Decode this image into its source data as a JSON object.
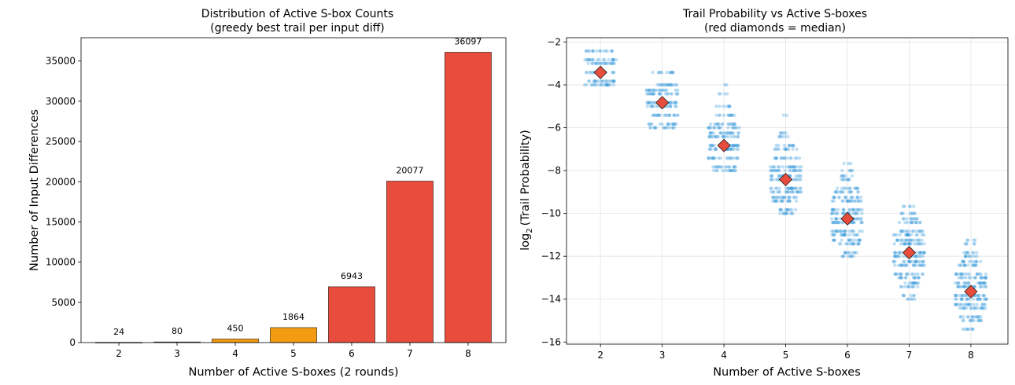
{
  "chart_data": [
    {
      "type": "bar",
      "title": "Distribution of Active S-box Counts",
      "subtitle": "(greedy best trail per input diff)",
      "xlabel": "Number of Active S-boxes (2 rounds)",
      "ylabel": "Number of Input Differences",
      "categories": [
        "2",
        "3",
        "4",
        "5",
        "6",
        "7",
        "8"
      ],
      "values": [
        24,
        80,
        450,
        1864,
        6943,
        20077,
        36097
      ],
      "data_labels": [
        "24",
        "80",
        "450",
        "1864",
        "6943",
        "20077",
        "36097"
      ],
      "colors": [
        "#f39c12",
        "#f39c12",
        "#f39c12",
        "#f39c12",
        "#e74c3c",
        "#e74c3c",
        "#e74c3c"
      ],
      "ylim": [
        0,
        37900
      ],
      "yticks": [
        0,
        5000,
        10000,
        15000,
        20000,
        25000,
        30000,
        35000
      ],
      "ytick_labels": [
        "0",
        "5000",
        "10000",
        "15000",
        "20000",
        "25000",
        "30000",
        "35000"
      ],
      "grid": false
    },
    {
      "type": "scatter",
      "title": "Trail Probability vs Active S-boxes",
      "subtitle": "(red diamonds = median)",
      "xlabel": "Number of Active S-boxes",
      "ylabel_pre": "log",
      "ylabel_sub": "2",
      "ylabel_post": "(Trail Probability)",
      "categories": [
        2,
        3,
        4,
        5,
        6,
        7,
        8
      ],
      "xtick_labels": [
        "2",
        "3",
        "4",
        "5",
        "6",
        "7",
        "8"
      ],
      "medians": [
        -3.42,
        -4.83,
        -6.83,
        -8.42,
        -10.25,
        -11.83,
        -13.65
      ],
      "ranges": [
        [
          -4.0,
          -2.42
        ],
        [
          -6.0,
          -3.42
        ],
        [
          -8.0,
          -4.0
        ],
        [
          -10.0,
          -5.42
        ],
        [
          -12.0,
          -7.67
        ],
        [
          -14.0,
          -9.67
        ],
        [
          -15.4,
          -11.25
        ]
      ],
      "levels": [
        [
          -4.0,
          -3.83,
          -3.42,
          -3.0,
          -2.83,
          -2.42
        ],
        [
          -6.0,
          -5.83,
          -5.42,
          -5.0,
          -4.83,
          -4.42,
          -4.25,
          -4.0,
          -3.42
        ],
        [
          -8.0,
          -7.83,
          -7.42,
          -7.0,
          -6.83,
          -6.42,
          -6.25,
          -6.0,
          -5.83,
          -5.42,
          -5.0,
          -4.42,
          -4.0
        ],
        [
          -10.0,
          -9.83,
          -9.42,
          -9.25,
          -9.0,
          -8.83,
          -8.42,
          -8.25,
          -8.0,
          -7.83,
          -7.42,
          -7.0,
          -6.83,
          -6.42,
          -6.25,
          -5.42
        ],
        [
          -12.0,
          -11.83,
          -11.42,
          -11.25,
          -11.0,
          -10.83,
          -10.42,
          -10.25,
          -10.0,
          -9.83,
          -9.42,
          -9.25,
          -9.0,
          -8.83,
          -8.42,
          -8.25,
          -8.0,
          -7.67
        ],
        [
          -14.0,
          -13.83,
          -13.42,
          -13.25,
          -13.0,
          -12.83,
          -12.42,
          -12.25,
          -12.0,
          -11.83,
          -11.42,
          -11.25,
          -11.0,
          -10.83,
          -10.42,
          -10.25,
          -10.0,
          -9.67
        ],
        [
          -15.4,
          -15.0,
          -14.83,
          -14.42,
          -14.25,
          -14.0,
          -13.83,
          -13.42,
          -13.25,
          -13.0,
          -12.83,
          -12.42,
          -12.25,
          -12.0,
          -11.83,
          -11.42,
          -11.25
        ]
      ],
      "point_color": "#3498db",
      "median_color": "#e74c3c",
      "xlim": [
        1.45,
        8.6
      ],
      "ylim": [
        -16.1,
        -1.8
      ],
      "yticks": [
        -16,
        -14,
        -12,
        -10,
        -8,
        -6,
        -4,
        -2
      ],
      "ytick_labels": [
        "−16",
        "−14",
        "−12",
        "−10",
        "−8",
        "−6",
        "−4",
        "−2"
      ],
      "grid": true
    }
  ]
}
